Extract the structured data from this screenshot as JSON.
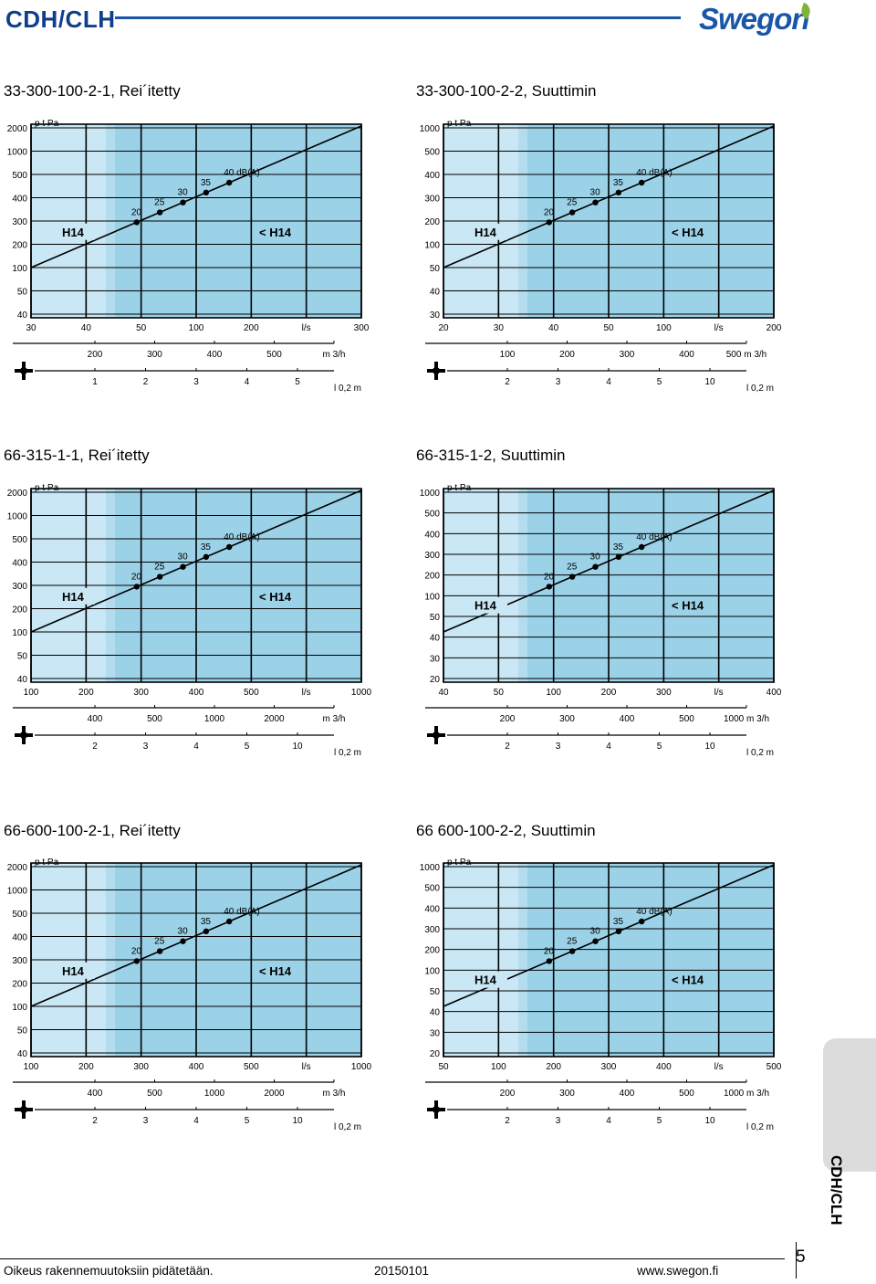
{
  "header": {
    "title": "CDH/CLH",
    "brand": "Swegon"
  },
  "colors": {
    "brand_blue": "#1a56a8",
    "light_band": "#c9e7f4",
    "dark_band": "#9bd2e8",
    "chart_line": "#000000"
  },
  "side_tab": {
    "label": "CDH/CLH"
  },
  "footer": {
    "left": "Oikeus rakennemuutoksiin pidätetään.",
    "center": "20150101",
    "right": "www.swegon.fi",
    "page": "5"
  },
  "chart_data": [
    {
      "type": "line",
      "title": "33-300-100-2-1, Rei´itetty",
      "ylabel": "p t Pa",
      "y_ticks": [
        "2000",
        "1000",
        "500",
        "400",
        "300",
        "200",
        "100",
        "50",
        "40"
      ],
      "x_ticks": [
        "30",
        "40",
        "50",
        "100",
        "200",
        "l/s",
        "300"
      ],
      "flow_m3h_ticks": [
        "200",
        "300",
        "400",
        "500",
        "m 3/h"
      ],
      "throw_ticks": [
        "1",
        "2",
        "3",
        "4",
        "5"
      ],
      "throw_label": "l 0,2 m",
      "sound_points": [
        "20",
        "25",
        "30",
        "35",
        "40 dB(A)"
      ],
      "region_labels": [
        "H14",
        "< H14"
      ]
    },
    {
      "type": "line",
      "title": "33-300-100-2-2, Suuttimin",
      "ylabel": "p t Pa",
      "y_ticks": [
        "1000",
        "500",
        "400",
        "300",
        "200",
        "100",
        "50",
        "40",
        "30"
      ],
      "x_ticks": [
        "20",
        "30",
        "40",
        "50",
        "100",
        "l/s",
        "200"
      ],
      "flow_m3h_ticks": [
        "100",
        "200",
        "300",
        "400",
        "500 m 3/h"
      ],
      "throw_ticks": [
        "2",
        "3",
        "4",
        "5",
        "10"
      ],
      "throw_label": "l 0,2 m",
      "sound_points": [
        "20",
        "25",
        "30",
        "35",
        "40 dB(A)"
      ],
      "region_labels": [
        "H14",
        "< H14"
      ]
    },
    {
      "type": "line",
      "title": "66-315-1-1, Rei´itetty",
      "ylabel": "p t Pa",
      "y_ticks": [
        "2000",
        "1000",
        "500",
        "400",
        "300",
        "200",
        "100",
        "50",
        "40"
      ],
      "x_ticks": [
        "100",
        "200",
        "300",
        "400",
        "500",
        "l/s",
        "1000"
      ],
      "flow_m3h_ticks": [
        "400",
        "500",
        "1000",
        "2000",
        "m 3/h"
      ],
      "throw_ticks": [
        "2",
        "3",
        "4",
        "5",
        "10"
      ],
      "throw_label": "l 0,2 m",
      "sound_points": [
        "20",
        "25",
        "30",
        "35",
        "40 dB(A)"
      ],
      "region_labels": [
        "H14",
        "< H14"
      ]
    },
    {
      "type": "line",
      "title": "66-315-1-2, Suuttimin",
      "ylabel": "p t Pa",
      "y_ticks": [
        "1000",
        "500",
        "400",
        "300",
        "200",
        "100",
        "50",
        "40",
        "30",
        "20"
      ],
      "x_ticks": [
        "40",
        "50",
        "100",
        "200",
        "300",
        "l/s",
        "400"
      ],
      "flow_m3h_ticks": [
        "200",
        "300",
        "400",
        "500",
        "1000 m 3/h"
      ],
      "throw_ticks": [
        "2",
        "3",
        "4",
        "5",
        "10"
      ],
      "throw_label": "l 0,2 m",
      "sound_points": [
        "20",
        "25",
        "30",
        "35",
        "40 dB(A)"
      ],
      "region_labels": [
        "H14",
        "< H14"
      ]
    },
    {
      "type": "line",
      "title": "66-600-100-2-1, Rei´itetty",
      "ylabel": "p t Pa",
      "y_ticks": [
        "2000",
        "1000",
        "500",
        "400",
        "300",
        "200",
        "100",
        "50",
        "40"
      ],
      "x_ticks": [
        "100",
        "200",
        "300",
        "400",
        "500",
        "l/s",
        "1000"
      ],
      "flow_m3h_ticks": [
        "400",
        "500",
        "1000",
        "2000",
        "m 3/h"
      ],
      "throw_ticks": [
        "2",
        "3",
        "4",
        "5",
        "10"
      ],
      "throw_label": "l 0,2 m",
      "sound_points": [
        "20",
        "25",
        "30",
        "35",
        "40 dB(A)"
      ],
      "region_labels": [
        "H14",
        "< H14"
      ]
    },
    {
      "type": "line",
      "title": "66 600-100-2-2, Suuttimin",
      "ylabel": "p t Pa",
      "y_ticks": [
        "1000",
        "500",
        "400",
        "300",
        "200",
        "100",
        "50",
        "40",
        "30",
        "20"
      ],
      "x_ticks": [
        "50",
        "100",
        "200",
        "300",
        "400",
        "l/s",
        "500"
      ],
      "flow_m3h_ticks": [
        "200",
        "300",
        "400",
        "500",
        "1000 m 3/h"
      ],
      "throw_ticks": [
        "2",
        "3",
        "4",
        "5",
        "10"
      ],
      "throw_label": "l 0,2 m",
      "sound_points": [
        "20",
        "25",
        "30",
        "35",
        "40 dB(A)"
      ],
      "region_labels": [
        "H14",
        "< H14"
      ]
    }
  ]
}
